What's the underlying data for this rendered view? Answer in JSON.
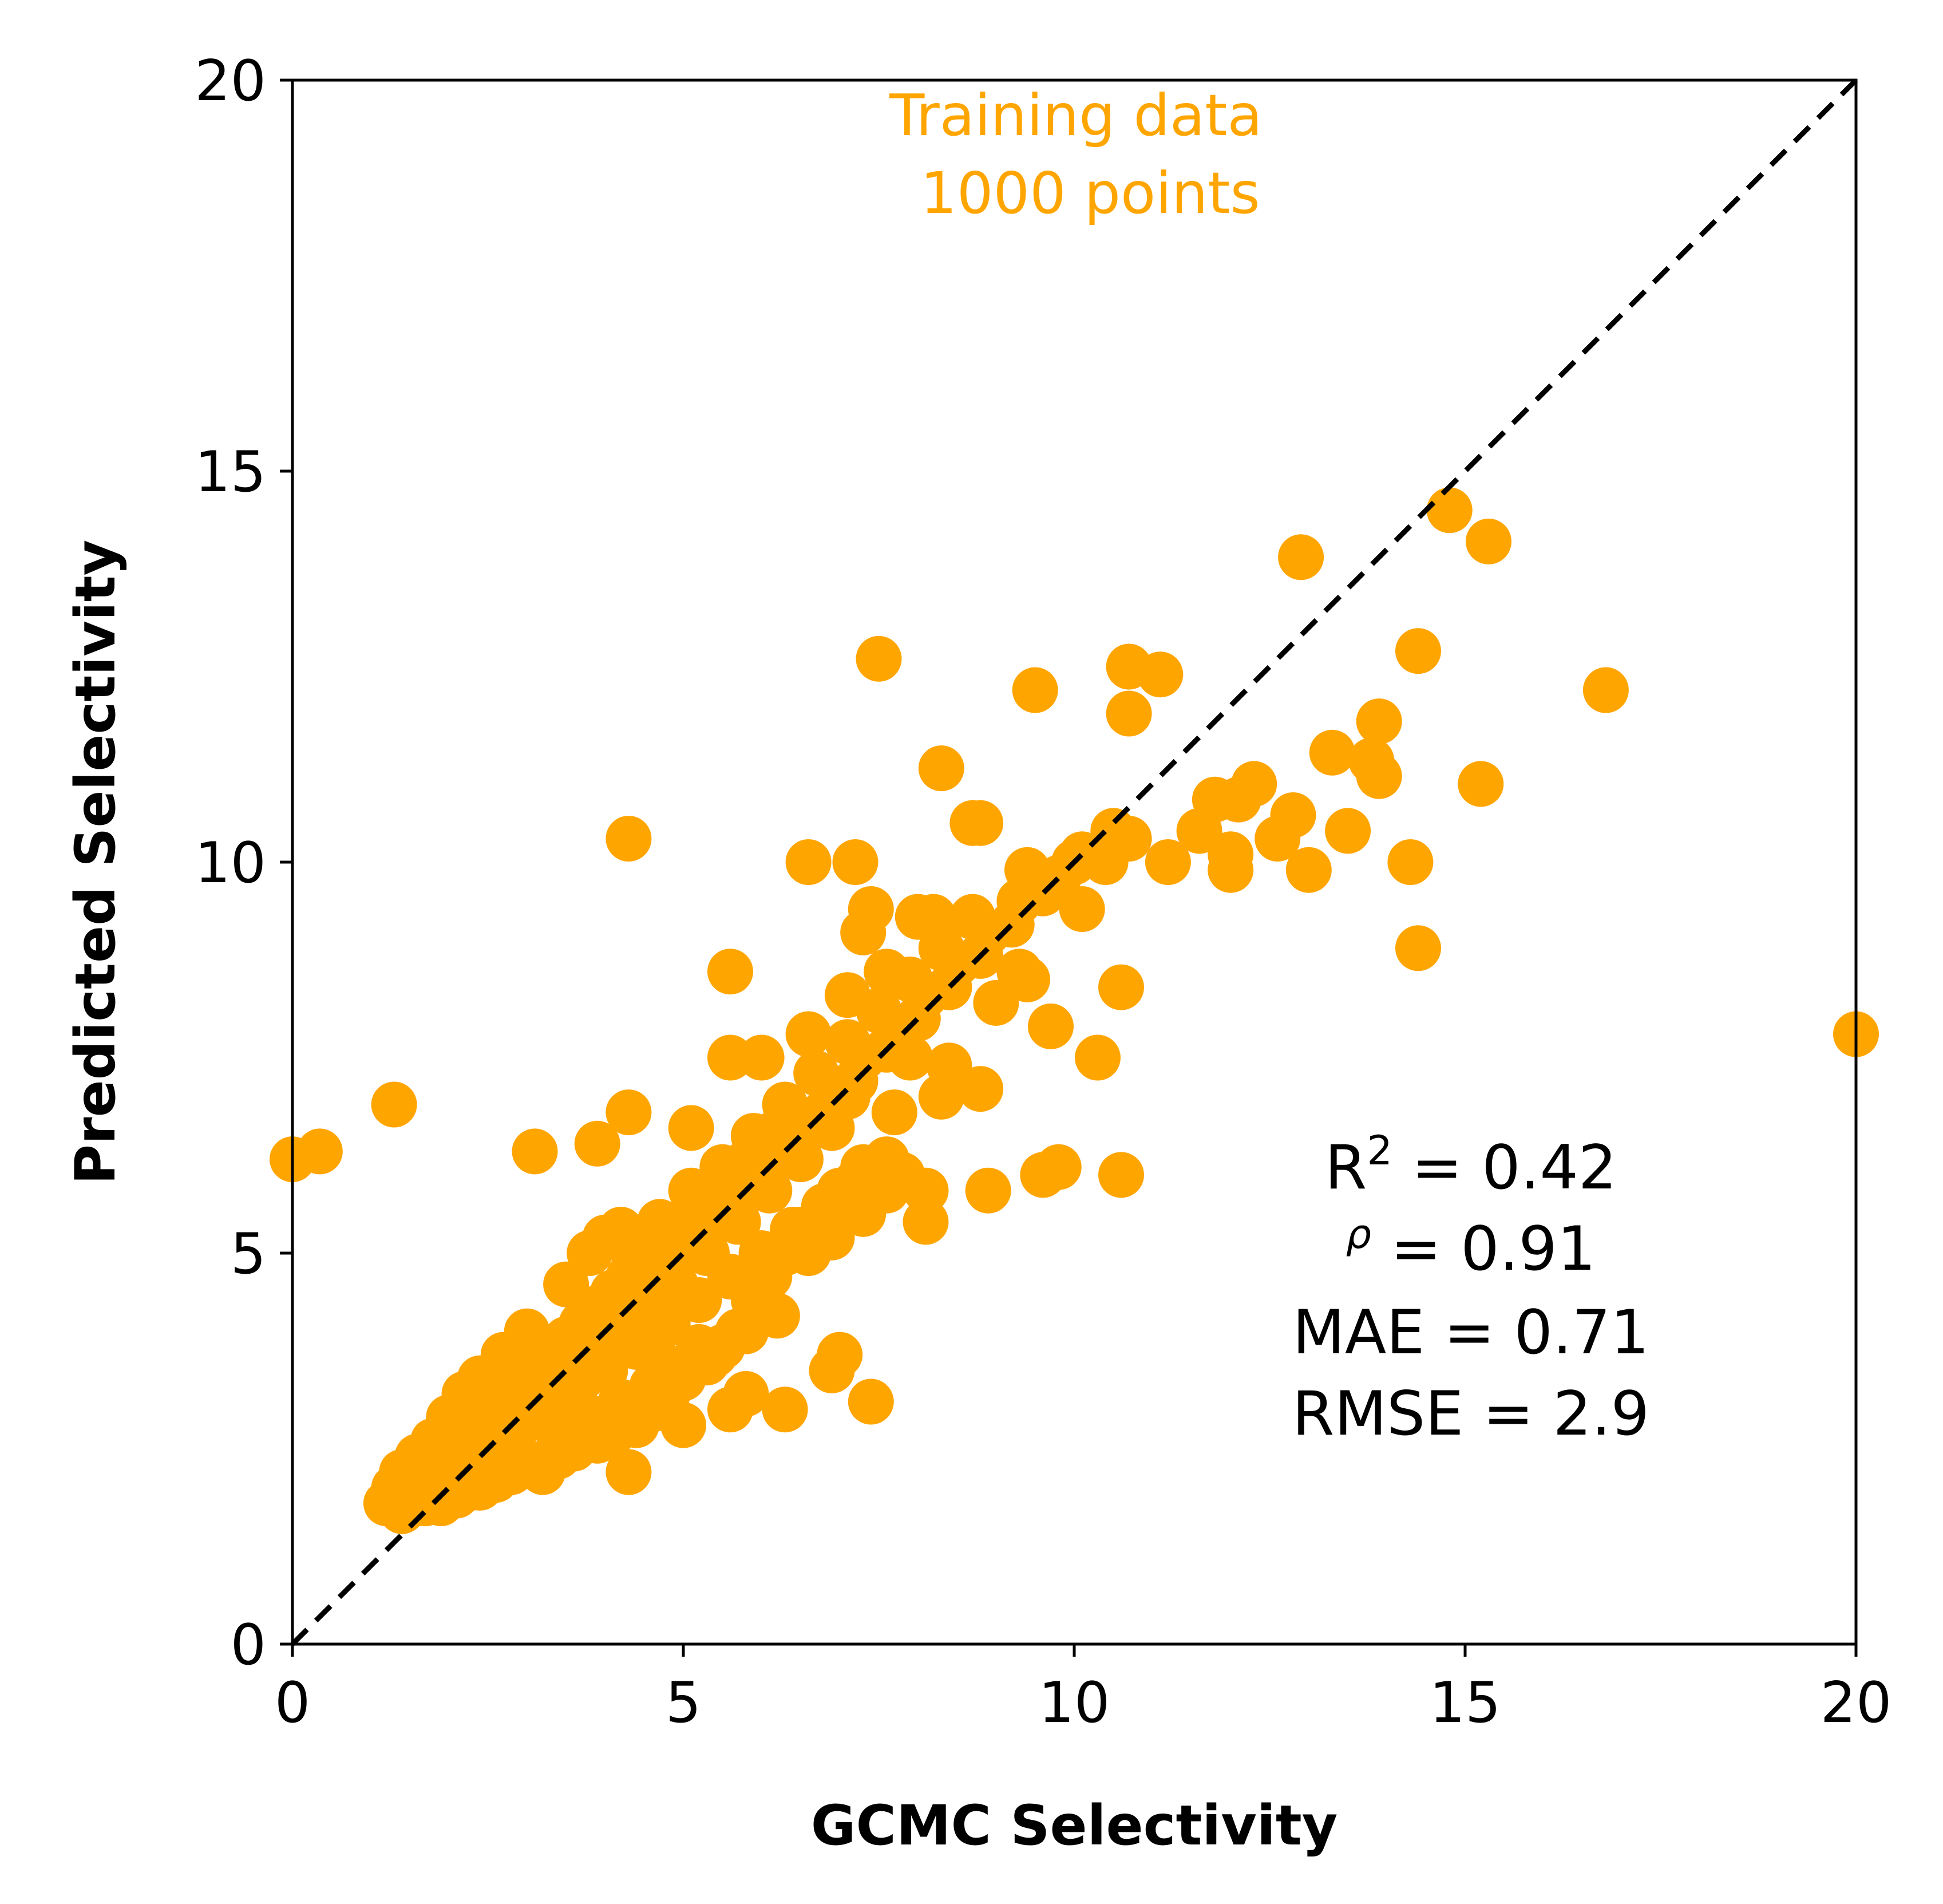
{
  "chart_data": {
    "type": "scatter",
    "xlabel": "GCMC Selectivity",
    "ylabel": "Predicted Selectivity",
    "xlim": [
      0,
      20
    ],
    "ylim": [
      0,
      20
    ],
    "xticks": [
      "0",
      "5",
      "10",
      "15",
      "20"
    ],
    "yticks": [
      "0",
      "5",
      "10",
      "15",
      "20"
    ],
    "grid": false,
    "reference_line": "y = x (black dashed)",
    "point_color": "#FFA500",
    "annotation": {
      "line1": "Training data",
      "line2": "1000 points"
    },
    "stats": {
      "r2_label": "R",
      "r2_sup": "2",
      "r2_value": " = 0.42",
      "rho_label": "ρ",
      "rho_value": " = 0.91",
      "mae": "MAE = 0.71",
      "rmse": "RMSE = 2.9"
    },
    "points": [
      [
        0.0,
        6.2
      ],
      [
        0.35,
        6.3
      ],
      [
        1.3,
        6.9
      ],
      [
        3.1,
        6.3
      ],
      [
        3.9,
        6.4
      ],
      [
        4.3,
        6.8
      ],
      [
        4.3,
        10.3
      ],
      [
        5.1,
        6.6
      ],
      [
        5.6,
        8.6
      ],
      [
        5.6,
        7.5
      ],
      [
        6.0,
        7.5
      ],
      [
        6.6,
        7.8
      ],
      [
        6.6,
        10.0
      ],
      [
        7.2,
        10.0
      ],
      [
        7.4,
        9.4
      ],
      [
        7.3,
        9.1
      ],
      [
        7.5,
        12.6
      ],
      [
        7.1,
        8.3
      ],
      [
        7.6,
        8.6
      ],
      [
        7.9,
        7.5
      ],
      [
        7.1,
        7.0
      ],
      [
        7.7,
        6.8
      ],
      [
        8.0,
        9.3
      ],
      [
        8.2,
        9.3
      ],
      [
        8.4,
        7.4
      ],
      [
        8.3,
        7.0
      ],
      [
        8.7,
        10.5
      ],
      [
        8.8,
        10.5
      ],
      [
        8.8,
        7.1
      ],
      [
        8.3,
        11.2
      ],
      [
        9.5,
        12.2
      ],
      [
        9.4,
        9.9
      ],
      [
        9.8,
        9.8
      ],
      [
        9.4,
        8.5
      ],
      [
        9.0,
        8.2
      ],
      [
        9.3,
        8.6
      ],
      [
        9.7,
        7.9
      ],
      [
        9.6,
        6.0
      ],
      [
        9.8,
        6.1
      ],
      [
        10.3,
        7.5
      ],
      [
        10.6,
        8.4
      ],
      [
        10.6,
        6.0
      ],
      [
        8.9,
        5.8
      ],
      [
        10.1,
        9.4
      ],
      [
        10.4,
        10.0
      ],
      [
        10.7,
        10.3
      ],
      [
        10.7,
        12.5
      ],
      [
        10.7,
        11.9
      ],
      [
        11.1,
        12.4
      ],
      [
        11.2,
        10.0
      ],
      [
        11.6,
        10.4
      ],
      [
        11.8,
        10.8
      ],
      [
        12.0,
        10.1
      ],
      [
        12.0,
        9.9
      ],
      [
        12.1,
        10.8
      ],
      [
        12.3,
        11.0
      ],
      [
        12.6,
        10.3
      ],
      [
        12.8,
        10.6
      ],
      [
        13.0,
        9.9
      ],
      [
        12.9,
        13.9
      ],
      [
        13.3,
        11.4
      ],
      [
        13.5,
        10.4
      ],
      [
        13.8,
        11.3
      ],
      [
        13.9,
        11.8
      ],
      [
        13.9,
        11.1
      ],
      [
        14.3,
        10.0
      ],
      [
        14.4,
        8.9
      ],
      [
        14.4,
        12.7
      ],
      [
        14.8,
        14.5
      ],
      [
        15.2,
        11.0
      ],
      [
        15.3,
        14.1
      ],
      [
        16.8,
        12.2
      ],
      [
        20.0,
        7.8
      ],
      [
        6.9,
        3.5
      ],
      [
        7.0,
        3.7
      ],
      [
        7.4,
        3.1
      ],
      [
        5.8,
        3.2
      ],
      [
        5.6,
        3.0
      ],
      [
        6.3,
        3.0
      ],
      [
        5.0,
        2.8
      ],
      [
        4.3,
        2.2
      ],
      [
        3.2,
        2.2
      ],
      [
        2.4,
        2.0
      ],
      [
        1.2,
        1.8
      ],
      [
        1.4,
        1.7
      ],
      [
        1.7,
        1.8
      ],
      [
        2.0,
        2.0
      ],
      [
        8.1,
        5.4
      ],
      [
        8.1,
        5.8
      ],
      [
        7.8,
        6.0
      ],
      [
        7.6,
        6.2
      ],
      [
        7.3,
        6.1
      ],
      [
        7.0,
        5.8
      ],
      [
        6.8,
        5.6
      ],
      [
        6.5,
        5.3
      ],
      [
        6.3,
        5.0
      ],
      [
        6.1,
        4.7
      ],
      [
        6.2,
        4.2
      ],
      [
        5.9,
        4.4
      ],
      [
        5.7,
        4.0
      ],
      [
        5.5,
        3.8
      ],
      [
        5.3,
        3.6
      ],
      [
        5.0,
        3.4
      ],
      [
        4.8,
        3.2
      ],
      [
        4.6,
        3.0
      ],
      [
        4.4,
        2.8
      ],
      [
        4.1,
        2.7
      ],
      [
        3.9,
        2.6
      ],
      [
        3.6,
        2.5
      ],
      [
        3.4,
        2.4
      ],
      [
        3.1,
        2.3
      ],
      [
        2.8,
        2.2
      ],
      [
        2.6,
        2.1
      ],
      [
        2.3,
        2.0
      ],
      [
        2.1,
        1.9
      ],
      [
        1.9,
        1.8
      ],
      [
        1.6,
        1.8
      ],
      [
        1.5,
        1.9
      ],
      [
        1.7,
        2.1
      ],
      [
        1.9,
        2.3
      ],
      [
        2.1,
        2.5
      ],
      [
        2.3,
        2.7
      ],
      [
        2.5,
        2.9
      ],
      [
        2.7,
        3.1
      ],
      [
        2.9,
        3.3
      ],
      [
        3.1,
        3.5
      ],
      [
        3.3,
        3.7
      ],
      [
        3.5,
        3.9
      ],
      [
        3.7,
        4.1
      ],
      [
        3.9,
        4.3
      ],
      [
        4.1,
        4.5
      ],
      [
        4.3,
        4.7
      ],
      [
        4.5,
        4.9
      ],
      [
        4.7,
        5.1
      ],
      [
        4.9,
        5.3
      ],
      [
        5.1,
        5.5
      ],
      [
        5.3,
        5.7
      ],
      [
        5.5,
        5.9
      ],
      [
        5.7,
        6.1
      ],
      [
        5.9,
        6.3
      ],
      [
        6.1,
        6.5
      ],
      [
        6.3,
        6.7
      ],
      [
        3.8,
        5.0
      ],
      [
        4.0,
        5.2
      ],
      [
        4.2,
        5.3
      ],
      [
        3.5,
        4.6
      ],
      [
        3.0,
        4.0
      ],
      [
        2.7,
        3.7
      ],
      [
        2.4,
        3.4
      ],
      [
        2.2,
        3.2
      ],
      [
        2.0,
        2.9
      ],
      [
        1.8,
        2.6
      ],
      [
        1.6,
        2.4
      ],
      [
        1.4,
        2.2
      ],
      [
        1.3,
        2.0
      ],
      [
        1.4,
        1.8
      ],
      [
        2.2,
        2.2
      ],
      [
        2.6,
        2.6
      ],
      [
        3.0,
        3.0
      ],
      [
        3.4,
        3.4
      ],
      [
        3.8,
        3.8
      ],
      [
        4.2,
        4.2
      ],
      [
        4.6,
        4.6
      ],
      [
        5.0,
        5.0
      ],
      [
        5.4,
        5.4
      ],
      [
        5.8,
        5.8
      ],
      [
        6.2,
        6.2
      ],
      [
        2.8,
        2.6
      ],
      [
        3.2,
        2.9
      ],
      [
        3.6,
        3.2
      ],
      [
        4.0,
        3.5
      ],
      [
        4.4,
        3.8
      ],
      [
        4.8,
        4.1
      ],
      [
        5.2,
        4.4
      ],
      [
        5.6,
        4.7
      ],
      [
        6.0,
        5.0
      ],
      [
        6.4,
        5.3
      ],
      [
        6.8,
        5.6
      ],
      [
        7.2,
        5.9
      ],
      [
        3.3,
        3.0
      ],
      [
        3.7,
        3.4
      ],
      [
        4.1,
        3.8
      ],
      [
        4.5,
        4.2
      ],
      [
        4.9,
        4.6
      ],
      [
        5.3,
        5.0
      ],
      [
        5.7,
        5.4
      ],
      [
        6.1,
        5.8
      ],
      [
        6.5,
        6.2
      ],
      [
        6.9,
        6.6
      ],
      [
        4.3,
        5.1
      ],
      [
        4.7,
        5.4
      ],
      [
        5.1,
        5.8
      ],
      [
        5.5,
        6.1
      ],
      [
        5.9,
        6.5
      ],
      [
        6.3,
        6.9
      ],
      [
        6.7,
        7.3
      ],
      [
        7.1,
        7.7
      ],
      [
        7.5,
        8.1
      ],
      [
        7.9,
        8.5
      ],
      [
        8.3,
        8.9
      ],
      [
        8.7,
        9.3
      ],
      [
        3.4,
        2.7
      ],
      [
        3.8,
        2.9
      ],
      [
        4.2,
        3.1
      ],
      [
        4.6,
        3.3
      ],
      [
        5.0,
        3.5
      ],
      [
        5.4,
        3.7
      ],
      [
        2.9,
        3.1
      ],
      [
        3.3,
        3.5
      ],
      [
        3.7,
        3.9
      ],
      [
        4.1,
        4.3
      ],
      [
        4.5,
        4.7
      ],
      [
        4.9,
        5.1
      ],
      [
        5.3,
        5.5
      ],
      [
        5.7,
        5.9
      ],
      [
        6.1,
        6.3
      ],
      [
        6.5,
        6.7
      ],
      [
        6.9,
        7.1
      ],
      [
        7.3,
        7.5
      ],
      [
        7.7,
        7.9
      ],
      [
        8.1,
        8.3
      ],
      [
        8.5,
        8.7
      ],
      [
        8.9,
        9.1
      ],
      [
        9.3,
        9.5
      ],
      [
        9.7,
        9.7
      ],
      [
        10.1,
        10.1
      ],
      [
        10.5,
        10.4
      ],
      [
        6.6,
        5.0
      ],
      [
        6.9,
        5.2
      ],
      [
        7.3,
        5.5
      ],
      [
        7.6,
        5.8
      ],
      [
        5.8,
        4.0
      ],
      [
        5.2,
        3.8
      ],
      [
        4.7,
        3.6
      ],
      [
        2.5,
        2.4
      ],
      [
        2.9,
        2.8
      ],
      [
        3.2,
        3.2
      ],
      [
        3.6,
        3.6
      ],
      [
        4.0,
        4.0
      ],
      [
        4.4,
        4.4
      ],
      [
        4.8,
        4.8
      ],
      [
        5.2,
        5.2
      ],
      [
        5.6,
        5.6
      ],
      [
        6.0,
        6.0
      ],
      [
        6.4,
        6.4
      ],
      [
        6.8,
        6.8
      ],
      [
        7.2,
        7.2
      ],
      [
        7.6,
        7.6
      ],
      [
        8.0,
        8.0
      ],
      [
        8.4,
        8.4
      ],
      [
        8.8,
        8.8
      ],
      [
        9.2,
        9.2
      ],
      [
        9.6,
        9.6
      ],
      [
        10.0,
        10.0
      ]
    ]
  }
}
